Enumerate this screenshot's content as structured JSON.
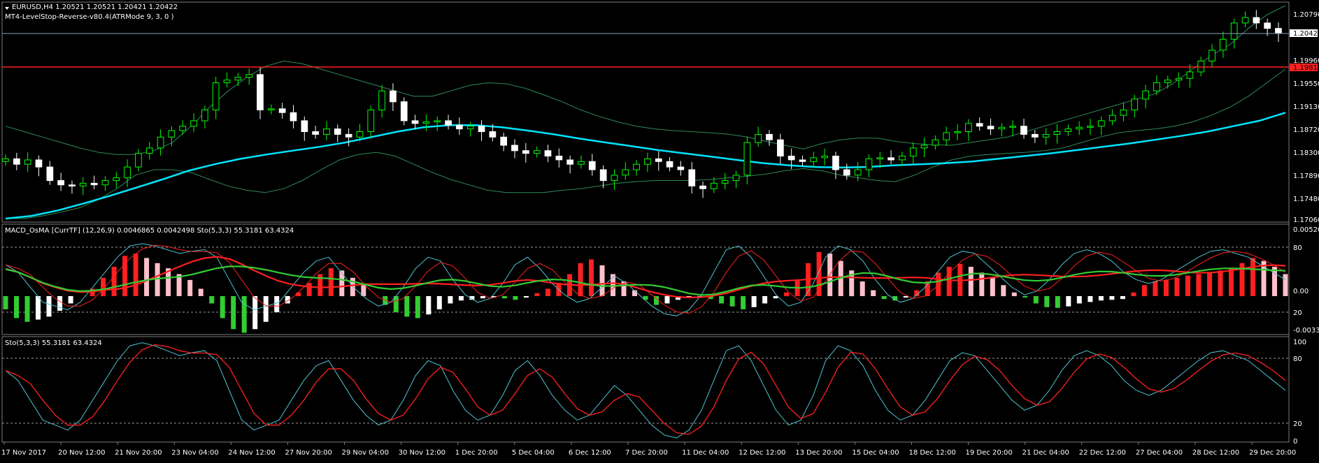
{
  "window": {
    "symbol_line": "EURUSD,H4  1.20521 1.20521 1.20421 1.20422",
    "indicator_line": "MT4-LevelStop-Reverse-v80.4(ATRMode 9, 3, 0 )"
  },
  "colors": {
    "background": "#000000",
    "bull_candle": "#00ff00",
    "bear_candle": "#ffffff",
    "ma": "#00e5ff",
    "bands": "#2e8b57",
    "hline_price": "#8aa5c0",
    "hline_red": "#ff2020",
    "osma_up_strong": "#ff2020",
    "osma_up_weak": "#ffc0cb",
    "osma_down_strong": "#32cd32",
    "osma_down_weak": "#ffffff",
    "stoch_main": "#4fc3d0",
    "stoch_signal": "#ff2020",
    "macd_sig_green": "#32cd32",
    "macd_sig_red": "#ff2020"
  },
  "price_axis": {
    "labels": [
      "1.20790",
      "1.19960",
      "1.19550",
      "1.19130",
      "1.18720",
      "1.18300",
      "1.17890",
      "1.17480",
      "1.17060"
    ],
    "current_price": "1.20422",
    "red_level": "1.19812"
  },
  "panel2": {
    "title": "MACD_OsMA [CurrTF] (12,26,9) 0.0046865 0.0042498  Sto(5,3,3) 55.3181 63.4324",
    "axis_labels": [
      "0.005208",
      "80",
      "0.00",
      "20",
      "-0.003383"
    ]
  },
  "panel3": {
    "title": "Sto(5,3,3) 55.3181 63.4324",
    "axis_labels": [
      "100",
      "80",
      "20",
      "0"
    ]
  },
  "time_axis": [
    "17 Nov 2017",
    "20 Nov 12:00",
    "21 Nov 20:00",
    "23 Nov 04:00",
    "24 Nov 12:00",
    "27 Nov 20:00",
    "29 Nov 04:00",
    "30 Nov 12:00",
    "1 Dec 20:00",
    "5 Dec 04:00",
    "6 Dec 12:00",
    "7 Dec 20:00",
    "11 Dec 04:00",
    "12 Dec 12:00",
    "13 Dec 20:00",
    "15 Dec 04:00",
    "18 Dec 12:00",
    "19 Dec 20:00",
    "21 Dec 04:00",
    "22 Dec 12:00",
    "27 Dec 04:00",
    "28 Dec 12:00",
    "29 Dec 20:00"
  ],
  "chart_data": [
    {
      "type": "candlestick",
      "title": "EURUSD,H4",
      "ylim": [
        1.17,
        1.2092
      ],
      "close": [
        1.181,
        1.18,
        1.1808,
        1.1795,
        1.177,
        1.1762,
        1.176,
        1.1765,
        1.1762,
        1.177,
        1.1775,
        1.1795,
        1.182,
        1.183,
        1.185,
        1.1862,
        1.187,
        1.188,
        1.19,
        1.195,
        1.1955,
        1.196,
        1.1965,
        1.19,
        1.1902,
        1.1895,
        1.188,
        1.186,
        1.1855,
        1.1865,
        1.1855,
        1.185,
        1.186,
        1.19,
        1.1935,
        1.1915,
        1.188,
        1.1875,
        1.1878,
        1.188,
        1.1872,
        1.1865,
        1.187,
        1.186,
        1.185,
        1.1835,
        1.1825,
        1.182,
        1.1825,
        1.1815,
        1.1808,
        1.18,
        1.1805,
        1.179,
        1.177,
        1.178,
        1.179,
        1.18,
        1.181,
        1.1805,
        1.1795,
        1.179,
        1.176,
        1.1755,
        1.1765,
        1.177,
        1.178,
        1.184,
        1.1855,
        1.1845,
        1.1815,
        1.1808,
        1.1805,
        1.1812,
        1.1815,
        1.179,
        1.178,
        1.179,
        1.181,
        1.1812,
        1.1808,
        1.1815,
        1.183,
        1.1835,
        1.1845,
        1.1858,
        1.186,
        1.1875,
        1.187,
        1.1865,
        1.1868,
        1.187,
        1.1855,
        1.185,
        1.1855,
        1.186,
        1.1865,
        1.1868,
        1.187,
        1.188,
        1.189,
        1.19,
        1.192,
        1.1935,
        1.195,
        1.1955,
        1.1958,
        1.197,
        1.199,
        1.201,
        1.203,
        1.206,
        1.207,
        1.206,
        1.205,
        1.2042
      ],
      "upper_band": [
        1.187,
        1.186,
        1.185,
        1.184,
        1.183,
        1.1822,
        1.1818,
        1.1818,
        1.1825,
        1.184,
        1.187,
        1.1905,
        1.1935,
        1.196,
        1.198,
        1.199,
        1.1985,
        1.1975,
        1.1965,
        1.1955,
        1.1945,
        1.1935,
        1.1925,
        1.1925,
        1.1935,
        1.1945,
        1.195,
        1.1948,
        1.194,
        1.1928,
        1.1915,
        1.19,
        1.1888,
        1.1878,
        1.187,
        1.1865,
        1.1862,
        1.186,
        1.1858,
        1.1855,
        1.185,
        1.1842,
        1.1835,
        1.1828,
        1.1838,
        1.1845,
        1.1848,
        1.1848,
        1.1842,
        1.1838,
        1.1836,
        1.1835,
        1.184,
        1.1845,
        1.185,
        1.186,
        1.187,
        1.188,
        1.189,
        1.19,
        1.191,
        1.192,
        1.193,
        1.195,
        1.1975,
        1.2,
        1.202,
        1.205,
        1.2075,
        1.2092
      ],
      "lower_band": [
        1.17,
        1.17,
        1.1705,
        1.1712,
        1.172,
        1.1735,
        1.1755,
        1.178,
        1.179,
        1.179,
        1.1785,
        1.1772,
        1.176,
        1.1752,
        1.1748,
        1.1755,
        1.177,
        1.179,
        1.1808,
        1.1818,
        1.1822,
        1.1815,
        1.18,
        1.1785,
        1.1772,
        1.1762,
        1.1752,
        1.1748,
        1.1748,
        1.1748,
        1.1752,
        1.1755,
        1.176,
        1.1765,
        1.1768,
        1.177,
        1.177,
        1.177,
        1.1772,
        1.1775,
        1.1778,
        1.1782,
        1.1788,
        1.1792,
        1.1788,
        1.178,
        1.1775,
        1.177,
        1.1768,
        1.178,
        1.1795,
        1.1808,
        1.1815,
        1.1818,
        1.182,
        1.1822,
        1.1825,
        1.183,
        1.184,
        1.185,
        1.1858,
        1.1862,
        1.1865,
        1.187,
        1.1878,
        1.189,
        1.1905,
        1.1925,
        1.195,
        1.1975
      ],
      "ma": [
        1.17,
        1.1705,
        1.1715,
        1.1728,
        1.1742,
        1.1757,
        1.1772,
        1.1788,
        1.18,
        1.181,
        1.1818,
        1.1825,
        1.1832,
        1.184,
        1.185,
        1.186,
        1.1868,
        1.1872,
        1.1872,
        1.1868,
        1.1862,
        1.1855,
        1.1847,
        1.184,
        1.1833,
        1.1826,
        1.182,
        1.1814,
        1.1808,
        1.1802,
        1.1798,
        1.1795,
        1.1794,
        1.1795,
        1.1798,
        1.18,
        1.1802,
        1.1805,
        1.181,
        1.1815,
        1.182,
        1.1826,
        1.1832,
        1.1838,
        1.1845,
        1.1852,
        1.186,
        1.187,
        1.188,
        1.1895
      ]
    },
    {
      "type": "histogram+line",
      "title": "MACD_OsMA [CurrTF] (12,26,9)",
      "ylim": [
        -20,
        110
      ],
      "osma": [
        -18,
        -30,
        -35,
        -32,
        -28,
        -20,
        -10,
        0,
        10,
        25,
        40,
        55,
        58,
        52,
        45,
        38,
        30,
        22,
        10,
        -10,
        -30,
        -45,
        -50,
        -45,
        -35,
        -22,
        -10,
        5,
        18,
        30,
        38,
        35,
        25,
        15,
        0,
        -12,
        -22,
        -28,
        -30,
        -25,
        -18,
        -10,
        -6,
        -5,
        -3,
        -2,
        -3,
        -5,
        -2,
        4,
        10,
        18,
        30,
        45,
        50,
        42,
        30,
        20,
        8,
        -5,
        -12,
        -10,
        -5,
        -2,
        -1,
        -4,
        -10,
        -14,
        -18,
        -15,
        -10,
        -3,
        5,
        22,
        45,
        60,
        58,
        48,
        35,
        20,
        8,
        -4,
        -6,
        -2,
        8,
        20,
        32,
        40,
        44,
        40,
        32,
        25,
        15,
        5,
        -2,
        -10,
        -15,
        -16,
        -14,
        -10,
        -8,
        -6,
        -5,
        -4,
        5,
        15,
        20,
        22,
        25,
        28,
        30,
        32,
        35,
        38,
        45,
        52,
        48,
        40,
        30
      ],
      "stoch_main": [
        70,
        60,
        40,
        20,
        15,
        10,
        20,
        40,
        60,
        80,
        95,
        98,
        95,
        90,
        85,
        88,
        90,
        80,
        50,
        20,
        10,
        15,
        20,
        40,
        60,
        75,
        80,
        60,
        40,
        25,
        15,
        20,
        40,
        65,
        80,
        75,
        50,
        30,
        20,
        25,
        45,
        70,
        80,
        65,
        45,
        30,
        20,
        25,
        40,
        55,
        45,
        30,
        15,
        5,
        2,
        10,
        30,
        60,
        90,
        95,
        80,
        55,
        30,
        15,
        20,
        45,
        80,
        95,
        90,
        75,
        50,
        30,
        20,
        25,
        40,
        60,
        80,
        88,
        85,
        70,
        55,
        40,
        30,
        35,
        50,
        70,
        85,
        90,
        85,
        75,
        60,
        50,
        45,
        50,
        60,
        70,
        80,
        88,
        90,
        85,
        80,
        70,
        60,
        50
      ]
    },
    {
      "type": "line",
      "title": "Sto(5,3,3)",
      "ylim": [
        0,
        100
      ],
      "series": [
        {
          "name": "main",
          "values": [
            55.3181
          ]
        },
        {
          "name": "signal",
          "values": [
            63.4324
          ]
        }
      ]
    }
  ]
}
